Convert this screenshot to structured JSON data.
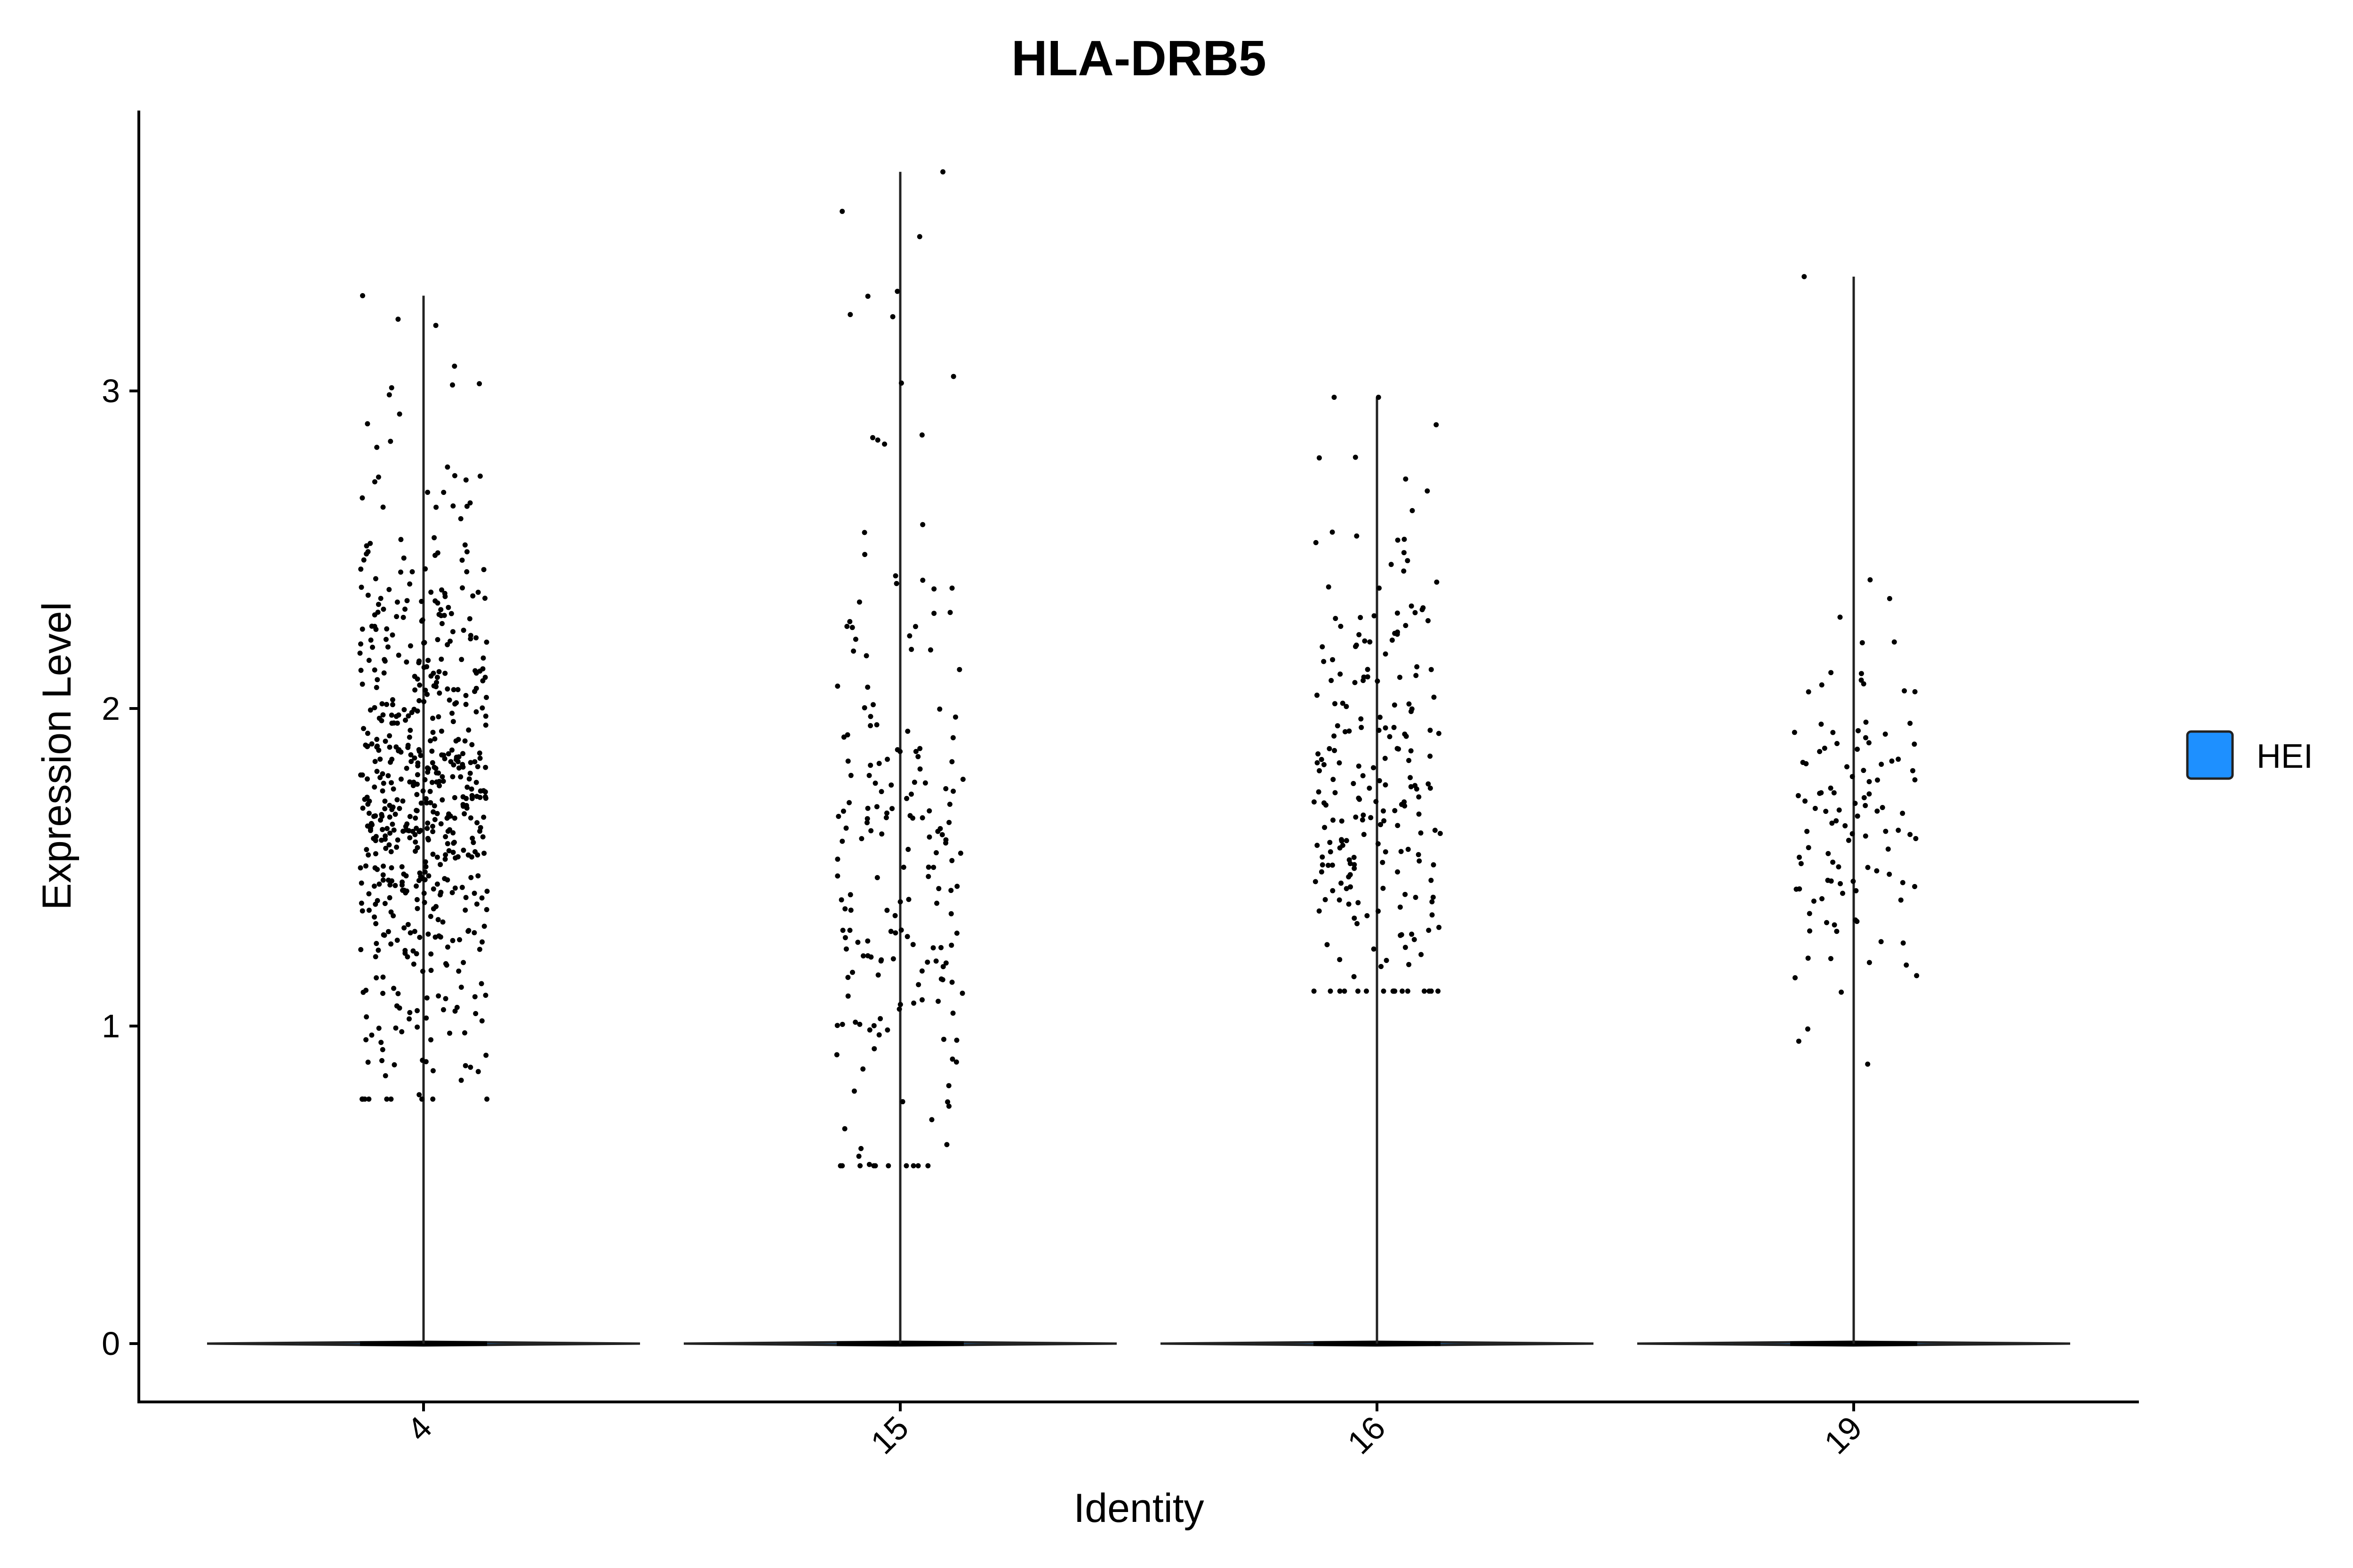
{
  "chart_data": {
    "type": "violin",
    "title": "HLA-DRB5",
    "xlabel": "Identity",
    "ylabel": "Expression Level",
    "categories": [
      "4",
      "15",
      "16",
      "19"
    ],
    "ylim": [
      -0.18,
      3.85
    ],
    "yticks": [
      0,
      1,
      2,
      3
    ],
    "grid": false,
    "legend": {
      "position": "right",
      "entries": [
        {
          "label": "HEI",
          "color": "#1E90FF"
        }
      ]
    },
    "violin_fill": "#1E90FF",
    "series": [
      {
        "category": "4",
        "max": 3.3,
        "nonzero_range": [
          0.77,
          3.3
        ],
        "nonzero_points": 600,
        "dense_band": [
          1.2,
          2.3
        ]
      },
      {
        "category": "15",
        "max": 3.69,
        "nonzero_range": [
          0.56,
          3.69
        ],
        "nonzero_points": 200,
        "dense_band": [
          0.9,
          2.1
        ]
      },
      {
        "category": "16",
        "max": 2.98,
        "nonzero_range": [
          1.11,
          2.98
        ],
        "nonzero_points": 220,
        "dense_band": [
          1.2,
          2.3
        ]
      },
      {
        "category": "19",
        "max": 3.36,
        "nonzero_range": [
          0.88,
          3.36
        ],
        "nonzero_points": 110,
        "dense_band": [
          1.2,
          2.1
        ]
      }
    ]
  }
}
